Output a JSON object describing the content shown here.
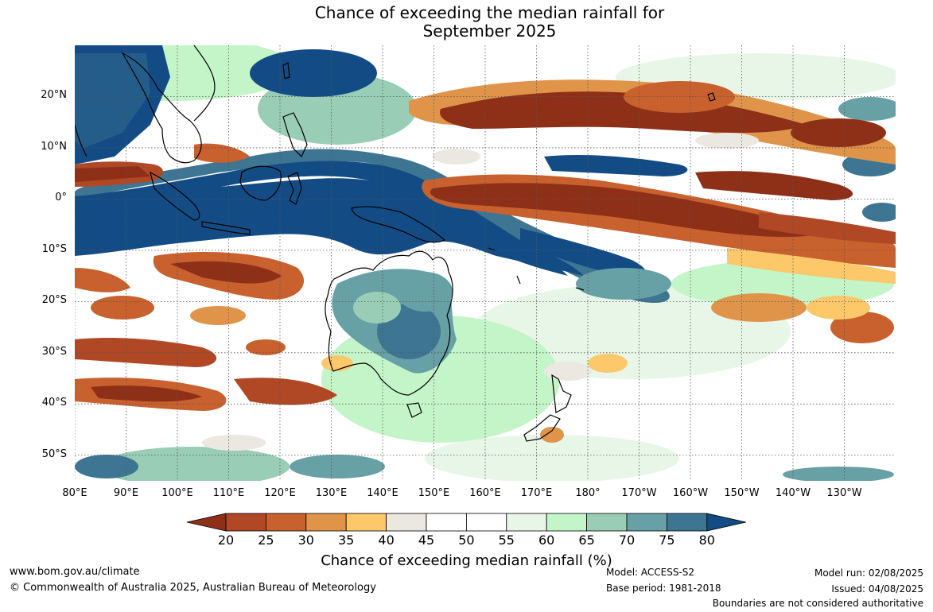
{
  "title": {
    "line1": "Chance of exceeding the median rainfall for",
    "line2": "September 2025"
  },
  "map": {
    "latitude_labels": [
      "20°N",
      "10°N",
      "0°",
      "10°S",
      "20°S",
      "30°S",
      "40°S",
      "50°S"
    ],
    "latitude_values": [
      20,
      10,
      0,
      -10,
      -20,
      -30,
      -40,
      -50
    ],
    "longitude_labels": [
      "80°E",
      "90°E",
      "100°E",
      "110°E",
      "120°E",
      "130°E",
      "140°E",
      "150°E",
      "160°E",
      "170°E",
      "180°",
      "170°W",
      "160°W",
      "150°W",
      "140°W",
      "130°W"
    ],
    "longitude_values": [
      80,
      90,
      100,
      110,
      120,
      130,
      140,
      150,
      160,
      170,
      180,
      190,
      200,
      210,
      220,
      230
    ],
    "extent": {
      "lon_min": 80,
      "lon_max": 240,
      "lat_min": -55,
      "lat_max": 30
    },
    "gridlines": true
  },
  "legend": {
    "ticks": [
      "20",
      "25",
      "30",
      "35",
      "40",
      "45",
      "50",
      "55",
      "60",
      "65",
      "70",
      "75",
      "80"
    ],
    "colors": [
      "#8e3018",
      "#b04825",
      "#c9612e",
      "#e0944a",
      "#fdc86a",
      "#ebe8e2",
      "#ffffff",
      "#ffffff",
      "#e8f6e8",
      "#c4f5c8",
      "#99cdb5",
      "#67a0a5",
      "#3e7592",
      "#134c85"
    ],
    "label": "Chance of exceeding median rainfall (%)"
  },
  "footer": {
    "website": "www.bom.gov.au/climate",
    "copyright": "© Commonwealth of Australia 2025, Australian Bureau of Meteorology",
    "model": "Model: ACCESS-S2",
    "base_period": "Base period: 1981-2018",
    "model_run": "Model run: 02/08/2025",
    "issued": "Issued: 04/08/2025",
    "disclaimer": "Boundaries are not considered authoritative"
  }
}
